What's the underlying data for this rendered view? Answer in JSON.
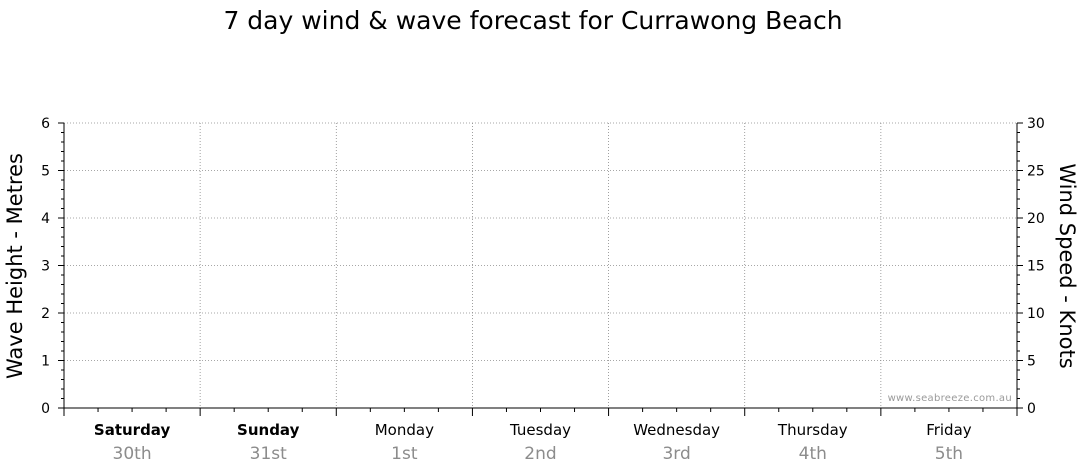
{
  "chart_data": {
    "type": "line",
    "title": "7 day wind & wave forecast for Currawong Beach",
    "ylabel_left": "Wave Height - Metres",
    "ylabel_right": "Wind Speed - Knots",
    "ylim_left": [
      0,
      6
    ],
    "ylim_right": [
      0,
      30
    ],
    "yticks_left": [
      "0",
      "1",
      "2",
      "3",
      "4",
      "5",
      "6"
    ],
    "yticks_right": [
      "0",
      "5",
      "10",
      "15",
      "20",
      "25",
      "30"
    ],
    "days": [
      {
        "day": "Saturday",
        "date": "30th",
        "bold": true
      },
      {
        "day": "Sunday",
        "date": "31st",
        "bold": true
      },
      {
        "day": "Monday",
        "date": "1st",
        "bold": false
      },
      {
        "day": "Tuesday",
        "date": "2nd",
        "bold": false
      },
      {
        "day": "Wednesday",
        "date": "3rd",
        "bold": false
      },
      {
        "day": "Thursday",
        "date": "4th",
        "bold": false
      },
      {
        "day": "Friday",
        "date": "5th",
        "bold": false
      }
    ],
    "series": [],
    "grid": true,
    "watermark": "www.seabreeze.com.au"
  },
  "colors": {
    "grid": "#8a8a8a",
    "date_text": "#8c8c8c",
    "watermark": "#9a9a9a"
  }
}
